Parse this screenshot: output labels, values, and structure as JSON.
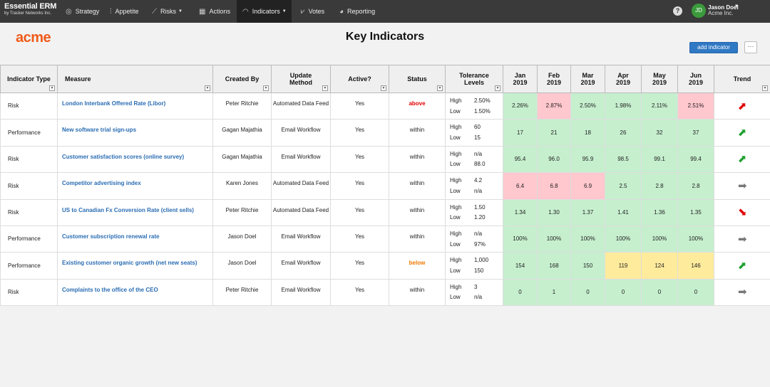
{
  "nav": {
    "brand": "Essential ERM",
    "brand_sub": "by Tracker Networks Inc.",
    "items": [
      {
        "label": "Strategy",
        "icon": "target-icon"
      },
      {
        "label": "Appetite",
        "icon": "sliders-icon"
      },
      {
        "label": "Risks",
        "icon": "chart-line-icon"
      },
      {
        "label": "Actions",
        "icon": "calendar-icon"
      },
      {
        "label": "Indicators",
        "icon": "gauge-icon"
      },
      {
        "label": "Votes",
        "icon": "vote-icon"
      },
      {
        "label": "Reporting",
        "icon": "pie-chart-icon"
      }
    ],
    "help": "?",
    "user": {
      "initials": "JD",
      "name": "Jason Doel",
      "org": "Acme Inc."
    }
  },
  "header": {
    "logo": "acme",
    "title": "Key Indicators",
    "add_button": "add indicator",
    "more_button": "···"
  },
  "table": {
    "columns": [
      "Indicator Type",
      "Measure",
      "Created By",
      "Update Method",
      "Active?",
      "Status",
      "Tolerance Levels",
      "Jan 2019",
      "Feb 2019",
      "Mar 2019",
      "Apr 2019",
      "May 2019",
      "Jun 2019",
      "Trend"
    ],
    "tol_labels": {
      "high": "High",
      "low": "Low"
    },
    "rows": [
      {
        "type": "Risk",
        "measure": "London Interbank Offered Rate (Libor)",
        "created_by": "Peter Ritchie",
        "method": "Automated Data Feed",
        "active": "Yes",
        "status": "above",
        "high": "2.50%",
        "low": "1.50%",
        "values": [
          "2.26%",
          "2.87%",
          "2.50%",
          "1.98%",
          "2.11%",
          "2.51%"
        ],
        "colors": [
          "g",
          "r",
          "g",
          "g",
          "g",
          "r"
        ],
        "trend": "up-red"
      },
      {
        "type": "Performance",
        "measure": "New software trial sign-ups",
        "created_by": "Gagan Majathia",
        "method": "Email Workflow",
        "active": "Yes",
        "status": "within",
        "high": "60",
        "low": "15",
        "values": [
          "17",
          "21",
          "18",
          "26",
          "32",
          "37"
        ],
        "colors": [
          "g",
          "g",
          "g",
          "g",
          "g",
          "g"
        ],
        "trend": "up-green"
      },
      {
        "type": "Risk",
        "measure": "Customer satisfaction scores (online survey)",
        "created_by": "Gagan Majathia",
        "method": "Email Workflow",
        "active": "Yes",
        "status": "within",
        "high": "n/a",
        "low": "88.0",
        "values": [
          "95.4",
          "96.0",
          "95.9",
          "98.5",
          "99.1",
          "99.4"
        ],
        "colors": [
          "g",
          "g",
          "g",
          "g",
          "g",
          "g"
        ],
        "trend": "up-green"
      },
      {
        "type": "Risk",
        "measure": "Competitor advertising index",
        "created_by": "Karen Jones",
        "method": "Automated Data Feed",
        "active": "Yes",
        "status": "within",
        "high": "4.2",
        "low": "n/a",
        "values": [
          "6.4",
          "6.8",
          "6.9",
          "2.5",
          "2.8",
          "2.8"
        ],
        "colors": [
          "r",
          "r",
          "r",
          "g",
          "g",
          "g"
        ],
        "trend": "flat"
      },
      {
        "type": "Risk",
        "measure": "US to Canadian Fx Conversion Rate (client sells)",
        "created_by": "Peter Ritchie",
        "method": "Automated Data Feed",
        "active": "Yes",
        "status": "within",
        "high": "1.50",
        "low": "1.20",
        "values": [
          "1.34",
          "1.30",
          "1.37",
          "1.41",
          "1.36",
          "1.35"
        ],
        "colors": [
          "g",
          "g",
          "g",
          "g",
          "g",
          "g"
        ],
        "trend": "down-red"
      },
      {
        "type": "Performance",
        "measure": "Customer subscription renewal rate",
        "created_by": "Jason Doel",
        "method": "Email Workflow",
        "active": "Yes",
        "status": "within",
        "high": "n/a",
        "low": "97%",
        "values": [
          "100%",
          "100%",
          "100%",
          "100%",
          "100%",
          "100%"
        ],
        "colors": [
          "g",
          "g",
          "g",
          "g",
          "g",
          "g"
        ],
        "trend": "flat"
      },
      {
        "type": "Performance",
        "measure": "Existing customer organic growth (net new seats)",
        "created_by": "Jason Doel",
        "method": "Email Workflow",
        "active": "Yes",
        "status": "below",
        "high": "1,000",
        "low": "150",
        "values": [
          "154",
          "168",
          "150",
          "119",
          "124",
          "146"
        ],
        "colors": [
          "g",
          "g",
          "g",
          "y",
          "y",
          "y"
        ],
        "trend": "up-green"
      },
      {
        "type": "Risk",
        "measure": "Complaints to the office of the CEO",
        "created_by": "Peter Ritchie",
        "method": "Email Workflow",
        "active": "Yes",
        "status": "within",
        "high": "3",
        "low": "n/a",
        "values": [
          "0",
          "1",
          "0",
          "0",
          "0",
          "0"
        ],
        "colors": [
          "g",
          "g",
          "g",
          "g",
          "g",
          "g"
        ],
        "trend": "flat"
      }
    ]
  }
}
